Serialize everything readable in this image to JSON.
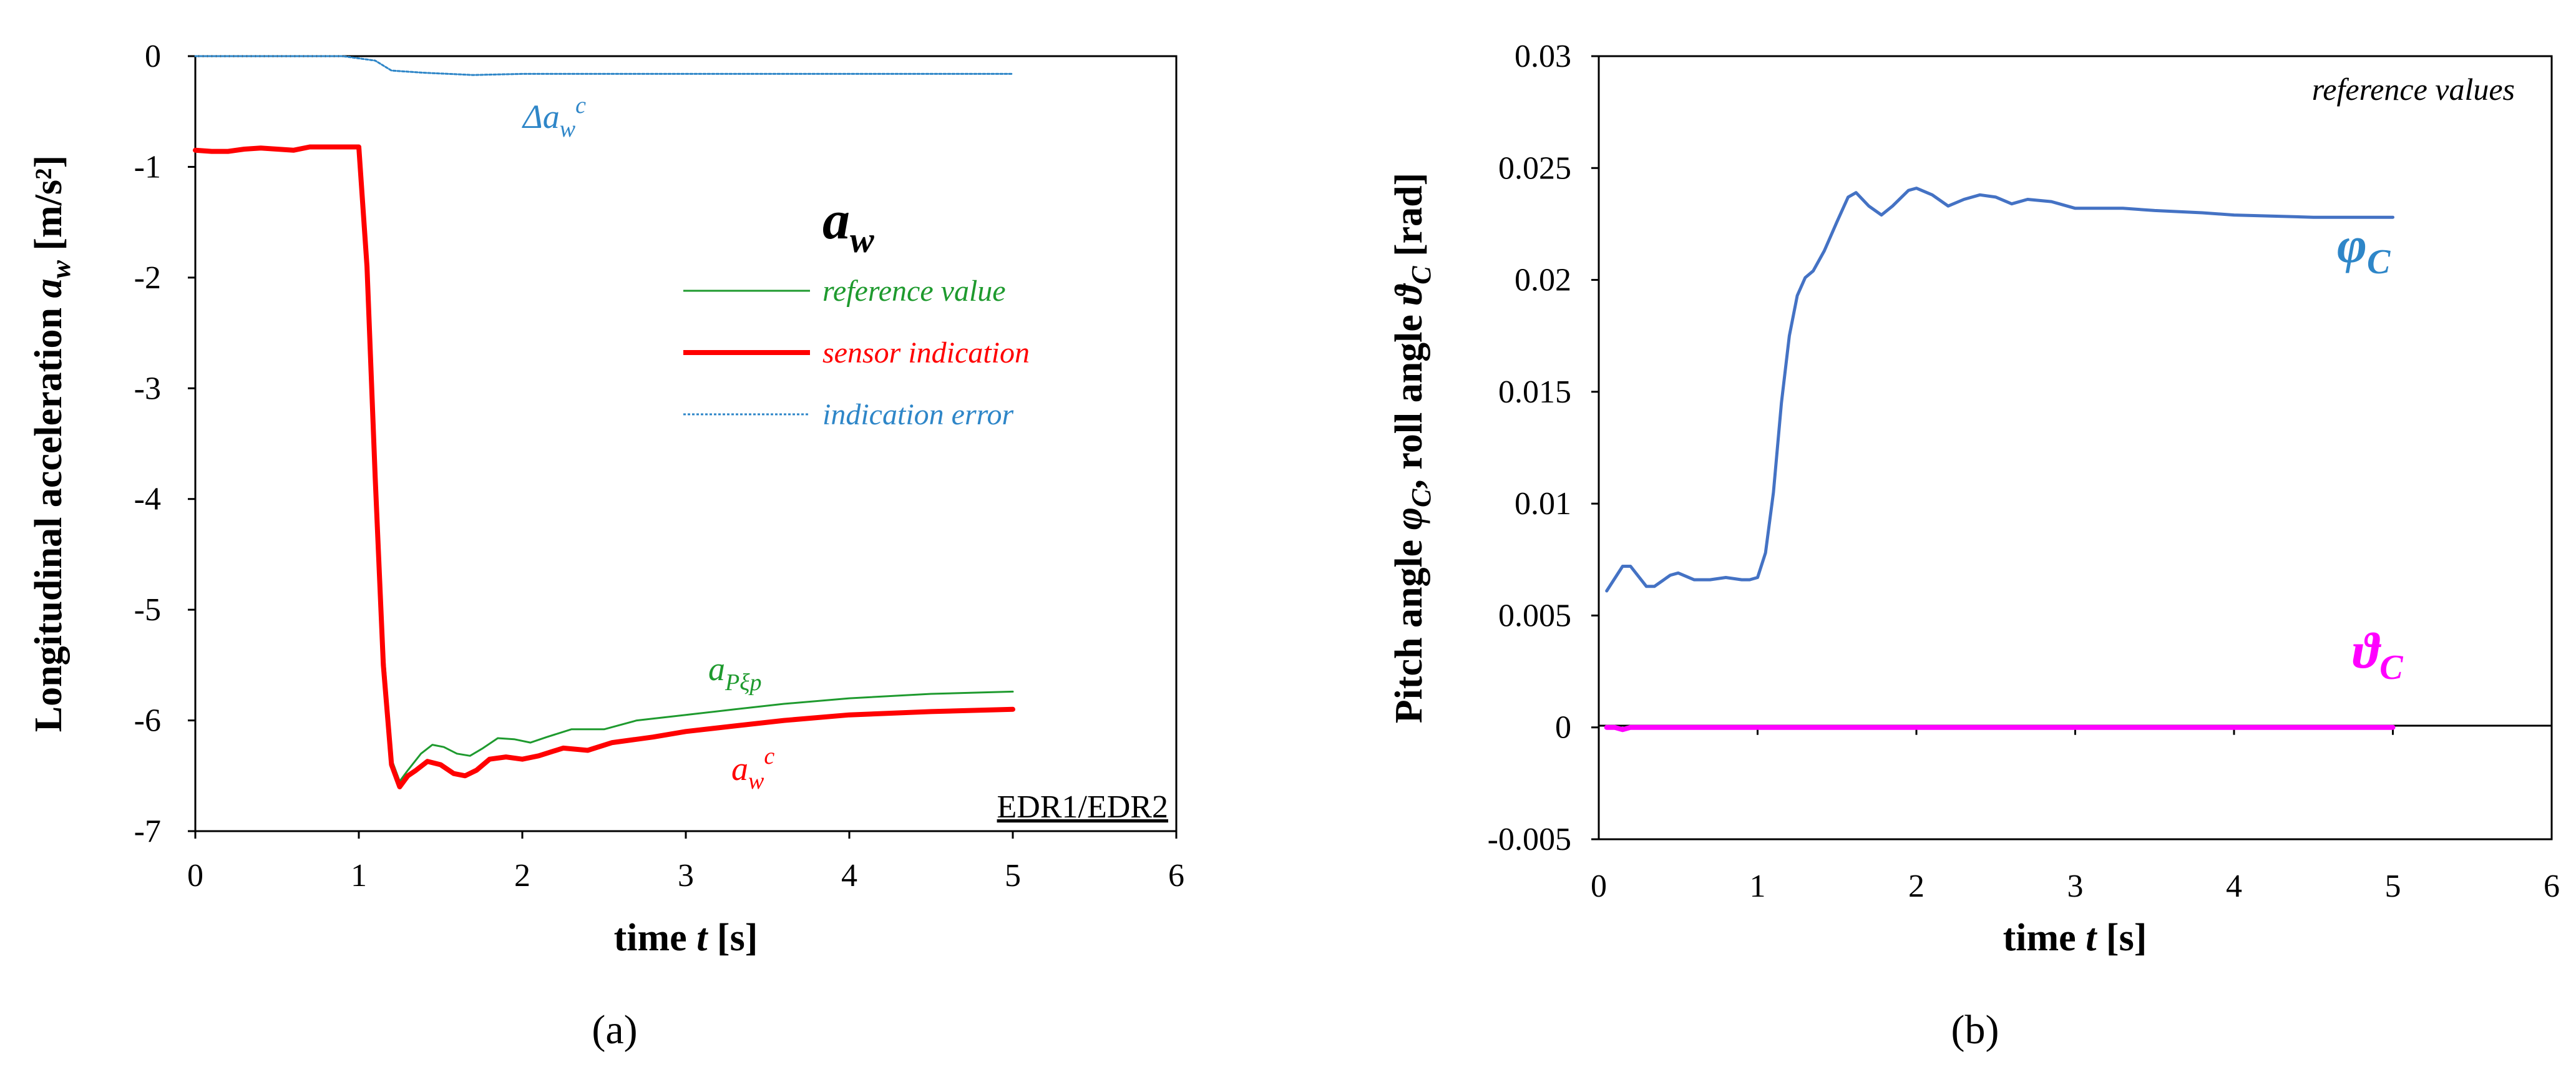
{
  "chart_data": [
    {
      "id": "a",
      "type": "line",
      "caption": "(a)",
      "xlabel_parts": [
        "time ",
        "t",
        " [s]"
      ],
      "ylabel_parts": [
        "Longitudinal acceleration ",
        "a",
        "w",
        " [m/s²]"
      ],
      "xlim": [
        0,
        6
      ],
      "ylim": [
        -7,
        0
      ],
      "xticks": [
        "0",
        "1",
        "2",
        "3",
        "4",
        "5",
        "6"
      ],
      "yticks": [
        "0",
        "-1",
        "-2",
        "-3",
        "-4",
        "-5",
        "-6",
        "-7"
      ],
      "legend_title": {
        "main": "a",
        "sub": "w"
      },
      "badge": "EDR1/EDR2",
      "series": [
        {
          "name": "reference value",
          "color": "#1e9a2e",
          "points": [
            [
              1.0,
              -0.82
            ],
            [
              1.05,
              -1.8
            ],
            [
              1.1,
              -3.6
            ],
            [
              1.15,
              -5.3
            ],
            [
              1.2,
              -6.35
            ],
            [
              1.25,
              -6.55
            ],
            [
              1.3,
              -6.45
            ],
            [
              1.38,
              -6.3
            ],
            [
              1.45,
              -6.22
            ],
            [
              1.52,
              -6.24
            ],
            [
              1.6,
              -6.3
            ],
            [
              1.68,
              -6.32
            ],
            [
              1.76,
              -6.25
            ],
            [
              1.85,
              -6.16
            ],
            [
              1.95,
              -6.17
            ],
            [
              2.05,
              -6.2
            ],
            [
              2.15,
              -6.15
            ],
            [
              2.3,
              -6.08
            ],
            [
              2.5,
              -6.08
            ],
            [
              2.7,
              -6.0
            ],
            [
              3.0,
              -5.95
            ],
            [
              3.3,
              -5.9
            ],
            [
              3.6,
              -5.85
            ],
            [
              4.0,
              -5.8
            ],
            [
              4.5,
              -5.76
            ],
            [
              5.0,
              -5.74
            ]
          ]
        },
        {
          "name": "sensor indication",
          "color": "#ff0000",
          "points": [
            [
              0.0,
              -0.85
            ],
            [
              0.1,
              -0.86
            ],
            [
              0.2,
              -0.86
            ],
            [
              0.3,
              -0.84
            ],
            [
              0.4,
              -0.83
            ],
            [
              0.5,
              -0.84
            ],
            [
              0.6,
              -0.85
            ],
            [
              0.7,
              -0.82
            ],
            [
              0.8,
              -0.82
            ],
            [
              1.0,
              -0.82
            ],
            [
              1.05,
              -1.9
            ],
            [
              1.1,
              -3.8
            ],
            [
              1.15,
              -5.5
            ],
            [
              1.2,
              -6.4
            ],
            [
              1.25,
              -6.6
            ],
            [
              1.3,
              -6.5
            ],
            [
              1.35,
              -6.45
            ],
            [
              1.42,
              -6.37
            ],
            [
              1.5,
              -6.4
            ],
            [
              1.58,
              -6.48
            ],
            [
              1.65,
              -6.5
            ],
            [
              1.72,
              -6.45
            ],
            [
              1.8,
              -6.35
            ],
            [
              1.9,
              -6.33
            ],
            [
              2.0,
              -6.35
            ],
            [
              2.1,
              -6.32
            ],
            [
              2.25,
              -6.25
            ],
            [
              2.4,
              -6.27
            ],
            [
              2.55,
              -6.2
            ],
            [
              2.8,
              -6.15
            ],
            [
              3.0,
              -6.1
            ],
            [
              3.3,
              -6.05
            ],
            [
              3.6,
              -6.0
            ],
            [
              4.0,
              -5.95
            ],
            [
              4.5,
              -5.92
            ],
            [
              5.0,
              -5.9
            ]
          ]
        },
        {
          "name": "indication error",
          "color": "#2e86c8",
          "dashed": true,
          "points": [
            [
              0.0,
              0.0
            ],
            [
              0.9,
              0.0
            ],
            [
              1.1,
              -0.04
            ],
            [
              1.2,
              -0.13
            ],
            [
              1.4,
              -0.15
            ],
            [
              1.7,
              -0.17
            ],
            [
              2.0,
              -0.16
            ],
            [
              2.5,
              -0.16
            ],
            [
              3.0,
              -0.16
            ],
            [
              4.0,
              -0.16
            ],
            [
              5.0,
              -0.16
            ]
          ]
        }
      ],
      "annotations": {
        "delta_label": {
          "pre": "Δa",
          "sub": "w",
          "sup": "c"
        },
        "ref_label": {
          "main": "a",
          "sub": "Pξp"
        },
        "sensor_label": {
          "main": "a",
          "sub": "w",
          "sup": "c"
        }
      }
    },
    {
      "id": "b",
      "type": "line",
      "caption": "(b)",
      "xlabel_parts": [
        "time ",
        "t",
        " [s]"
      ],
      "ylabel_parts": [
        "Pitch angle ",
        "φ",
        "C",
        ", roll angle ",
        "ϑ",
        "C",
        " [rad]"
      ],
      "xlim": [
        0,
        6
      ],
      "ylim": [
        -0.005,
        0.03
      ],
      "xticks": [
        "0",
        "1",
        "2",
        "3",
        "4",
        "5",
        "6"
      ],
      "yticks": [
        "0.03",
        "0.025",
        "0.02",
        "0.015",
        "0.01",
        "0.005",
        "0",
        "-0.005"
      ],
      "corner_note": "reference values",
      "series": [
        {
          "name": "φC",
          "color": "#4472c4",
          "points": [
            [
              0.05,
              0.0061
            ],
            [
              0.15,
              0.0072
            ],
            [
              0.2,
              0.0072
            ],
            [
              0.3,
              0.0063
            ],
            [
              0.35,
              0.0063
            ],
            [
              0.45,
              0.0068
            ],
            [
              0.5,
              0.0069
            ],
            [
              0.6,
              0.0066
            ],
            [
              0.7,
              0.0066
            ],
            [
              0.8,
              0.0067
            ],
            [
              0.9,
              0.0066
            ],
            [
              0.95,
              0.0066
            ],
            [
              1.0,
              0.0067
            ],
            [
              1.05,
              0.0078
            ],
            [
              1.1,
              0.0105
            ],
            [
              1.15,
              0.0145
            ],
            [
              1.2,
              0.0175
            ],
            [
              1.25,
              0.0193
            ],
            [
              1.3,
              0.0201
            ],
            [
              1.35,
              0.0204
            ],
            [
              1.42,
              0.0213
            ],
            [
              1.5,
              0.0226
            ],
            [
              1.57,
              0.0237
            ],
            [
              1.62,
              0.0239
            ],
            [
              1.7,
              0.0233
            ],
            [
              1.78,
              0.0229
            ],
            [
              1.85,
              0.0233
            ],
            [
              1.95,
              0.024
            ],
            [
              2.0,
              0.0241
            ],
            [
              2.1,
              0.0238
            ],
            [
              2.2,
              0.0233
            ],
            [
              2.3,
              0.0236
            ],
            [
              2.4,
              0.0238
            ],
            [
              2.5,
              0.0237
            ],
            [
              2.6,
              0.0234
            ],
            [
              2.7,
              0.0236
            ],
            [
              2.85,
              0.0235
            ],
            [
              3.0,
              0.0232
            ],
            [
              3.15,
              0.0232
            ],
            [
              3.3,
              0.0232
            ],
            [
              3.5,
              0.0231
            ],
            [
              3.8,
              0.023
            ],
            [
              4.0,
              0.0229
            ],
            [
              4.5,
              0.0228
            ],
            [
              5.0,
              0.0228
            ]
          ]
        },
        {
          "name": "ϑC",
          "color": "#ff00ff",
          "points": [
            [
              0.05,
              0.0
            ],
            [
              0.1,
              0.0
            ],
            [
              0.15,
              -0.0001
            ],
            [
              0.2,
              0.0
            ],
            [
              5.0,
              0.0
            ]
          ]
        }
      ],
      "annotations": {
        "phi_label": {
          "main": "φ",
          "sub": "C"
        },
        "theta_label": {
          "main": "ϑ",
          "sub": "C"
        }
      }
    }
  ]
}
